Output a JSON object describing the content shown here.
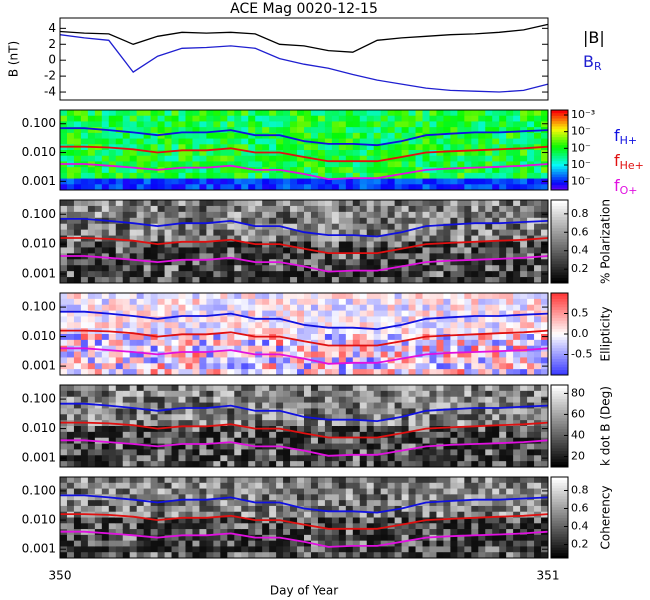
{
  "chart_data": [
    {
      "type": "line",
      "title": "ACE Mag 0020-12-15",
      "ylabel": "B (nT)",
      "xlim": [
        350,
        351
      ],
      "ylim": [
        -5,
        5.3
      ],
      "yticks": [
        -4,
        -2,
        0,
        2,
        4
      ],
      "x": [
        350,
        350.05,
        350.1,
        350.15,
        350.2,
        350.25,
        350.3,
        350.35,
        350.4,
        350.45,
        350.5,
        350.55,
        350.6,
        350.65,
        350.7,
        350.75,
        350.8,
        350.85,
        350.9,
        350.95,
        351
      ],
      "series": [
        {
          "name": "|B|",
          "color": "#000000",
          "values": [
            3.6,
            3.4,
            3.3,
            2.0,
            3.0,
            3.5,
            3.4,
            3.5,
            3.3,
            2.0,
            1.8,
            1.2,
            1.0,
            2.5,
            2.8,
            3.0,
            3.2,
            3.3,
            3.5,
            3.8,
            4.5
          ]
        },
        {
          "name": "B",
          "sub": "R",
          "color": "#1f1fd0",
          "values": [
            3.2,
            2.8,
            2.5,
            -1.5,
            0.5,
            1.5,
            1.6,
            1.8,
            1.5,
            0.2,
            -0.5,
            -1.0,
            -1.8,
            -2.5,
            -3.0,
            -3.5,
            -3.8,
            -3.9,
            -4.0,
            -3.8,
            -3.0
          ]
        }
      ]
    },
    {
      "type": "spectrogram",
      "colormap": "rainbow",
      "legend": true,
      "xlim": [
        350,
        351
      ],
      "ylim": [
        0.0005,
        0.3
      ],
      "log_y": true,
      "yticks": [
        {
          "value": 0.001,
          "label": "0.001"
        },
        {
          "value": 0.01,
          "label": "0.010"
        },
        {
          "value": 0.1,
          "label": "0.100"
        }
      ],
      "clim": [
        -7.5,
        -2.7
      ],
      "cticks": [
        {
          "value": -3,
          "label": "10⁻³"
        },
        {
          "value": -4,
          "label": "10⁻"
        },
        {
          "value": -5,
          "label": "10⁻"
        },
        {
          "value": -6,
          "label": "10⁻"
        },
        {
          "value": -7,
          "label": "10⁻"
        }
      ],
      "x": [
        350,
        350.05,
        350.1,
        350.15,
        350.2,
        350.25,
        350.3,
        350.35,
        350.4,
        350.45,
        350.5,
        350.55,
        350.6,
        350.65,
        350.7,
        350.75,
        350.8,
        350.85,
        350.9,
        350.95,
        351
      ],
      "series": [
        {
          "name": "f",
          "sub": "H+",
          "color": "#1010e0",
          "values": [
            0.07,
            0.07,
            0.06,
            0.05,
            0.04,
            0.05,
            0.05,
            0.06,
            0.04,
            0.04,
            0.025,
            0.02,
            0.02,
            0.018,
            0.025,
            0.04,
            0.045,
            0.05,
            0.05,
            0.055,
            0.06
          ]
        },
        {
          "name": "f",
          "sub": "He+",
          "color": "#e01010",
          "values": [
            0.016,
            0.016,
            0.015,
            0.013,
            0.01,
            0.012,
            0.012,
            0.014,
            0.01,
            0.01,
            0.007,
            0.005,
            0.005,
            0.005,
            0.007,
            0.01,
            0.011,
            0.012,
            0.013,
            0.014,
            0.016
          ]
        },
        {
          "name": "f",
          "sub": "O+",
          "color": "#e010e0",
          "values": [
            0.004,
            0.004,
            0.0035,
            0.003,
            0.0025,
            0.003,
            0.003,
            0.0035,
            0.0025,
            0.0025,
            0.0018,
            0.0012,
            0.0013,
            0.0013,
            0.0018,
            0.0025,
            0.0028,
            0.003,
            0.0032,
            0.0035,
            0.004
          ]
        }
      ]
    },
    {
      "type": "spectrogram",
      "colormap": "gray",
      "colorbar_label": "% Polarization",
      "xlim": [
        350,
        351
      ],
      "ylim": [
        0.0005,
        0.3
      ],
      "log_y": true,
      "yticks": [
        {
          "value": 0.001,
          "label": "0.001"
        },
        {
          "value": 0.01,
          "label": "0.010"
        },
        {
          "value": 0.1,
          "label": "0.100"
        }
      ],
      "clim": [
        0.05,
        0.95
      ],
      "cticks": [
        0.2,
        0.4,
        0.6,
        0.8
      ],
      "x": [
        350,
        350.05,
        350.1,
        350.15,
        350.2,
        350.25,
        350.3,
        350.35,
        350.4,
        350.45,
        350.5,
        350.55,
        350.6,
        350.65,
        350.7,
        350.75,
        350.8,
        350.85,
        350.9,
        350.95,
        351
      ],
      "series": [
        {
          "name": "f",
          "sub": "H+",
          "color": "#1010e0",
          "values": [
            0.07,
            0.07,
            0.06,
            0.05,
            0.04,
            0.05,
            0.05,
            0.06,
            0.04,
            0.04,
            0.025,
            0.02,
            0.02,
            0.018,
            0.025,
            0.04,
            0.045,
            0.05,
            0.05,
            0.055,
            0.06
          ]
        },
        {
          "name": "f",
          "sub": "He+",
          "color": "#e01010",
          "values": [
            0.016,
            0.016,
            0.015,
            0.013,
            0.01,
            0.012,
            0.012,
            0.014,
            0.01,
            0.01,
            0.007,
            0.005,
            0.005,
            0.005,
            0.007,
            0.01,
            0.011,
            0.012,
            0.013,
            0.014,
            0.016
          ]
        },
        {
          "name": "f",
          "sub": "O+",
          "color": "#e010e0",
          "values": [
            0.004,
            0.004,
            0.0035,
            0.003,
            0.0025,
            0.003,
            0.003,
            0.0035,
            0.0025,
            0.0025,
            0.0018,
            0.0012,
            0.0013,
            0.0013,
            0.0018,
            0.0025,
            0.0028,
            0.003,
            0.0032,
            0.0035,
            0.004
          ]
        }
      ]
    },
    {
      "type": "spectrogram",
      "colormap": "bwr",
      "colorbar_label": "Ellipticity",
      "xlim": [
        350,
        351
      ],
      "ylim": [
        0.0005,
        0.3
      ],
      "log_y": true,
      "yticks": [
        {
          "value": 0.001,
          "label": "0.001"
        },
        {
          "value": 0.01,
          "label": "0.010"
        },
        {
          "value": 0.1,
          "label": "0.100"
        }
      ],
      "clim": [
        -1,
        1
      ],
      "cticks": [
        -0.5,
        {
          "value": 0,
          "label": "0.0"
        },
        0.5
      ],
      "x": [
        350,
        350.05,
        350.1,
        350.15,
        350.2,
        350.25,
        350.3,
        350.35,
        350.4,
        350.45,
        350.5,
        350.55,
        350.6,
        350.65,
        350.7,
        350.75,
        350.8,
        350.85,
        350.9,
        350.95,
        351
      ],
      "series": [
        {
          "name": "f",
          "sub": "H+",
          "color": "#1010e0",
          "values": [
            0.07,
            0.07,
            0.06,
            0.05,
            0.04,
            0.05,
            0.05,
            0.06,
            0.04,
            0.04,
            0.025,
            0.02,
            0.02,
            0.018,
            0.025,
            0.04,
            0.045,
            0.05,
            0.05,
            0.055,
            0.06
          ]
        },
        {
          "name": "f",
          "sub": "He+",
          "color": "#e01010",
          "values": [
            0.016,
            0.016,
            0.015,
            0.013,
            0.01,
            0.012,
            0.012,
            0.014,
            0.01,
            0.01,
            0.007,
            0.005,
            0.005,
            0.005,
            0.007,
            0.01,
            0.011,
            0.012,
            0.013,
            0.014,
            0.016
          ]
        },
        {
          "name": "f",
          "sub": "O+",
          "color": "#e010e0",
          "values": [
            0.004,
            0.004,
            0.0035,
            0.003,
            0.0025,
            0.003,
            0.003,
            0.0035,
            0.0025,
            0.0025,
            0.0018,
            0.0012,
            0.0013,
            0.0013,
            0.0018,
            0.0025,
            0.0028,
            0.003,
            0.0032,
            0.0035,
            0.004
          ]
        }
      ]
    },
    {
      "type": "spectrogram",
      "colormap": "gray",
      "colorbar_label": "k dot B (Deg)",
      "xlim": [
        350,
        351
      ],
      "ylim": [
        0.0005,
        0.3
      ],
      "log_y": true,
      "yticks": [
        {
          "value": 0.001,
          "label": "0.001"
        },
        {
          "value": 0.01,
          "label": "0.010"
        },
        {
          "value": 0.1,
          "label": "0.100"
        }
      ],
      "clim": [
        10,
        88
      ],
      "cticks": [
        20,
        40,
        60,
        80
      ],
      "x": [
        350,
        350.05,
        350.1,
        350.15,
        350.2,
        350.25,
        350.3,
        350.35,
        350.4,
        350.45,
        350.5,
        350.55,
        350.6,
        350.65,
        350.7,
        350.75,
        350.8,
        350.85,
        350.9,
        350.95,
        351
      ],
      "series": [
        {
          "name": "f",
          "sub": "H+",
          "color": "#1010e0",
          "values": [
            0.07,
            0.07,
            0.06,
            0.05,
            0.04,
            0.05,
            0.05,
            0.06,
            0.04,
            0.04,
            0.025,
            0.02,
            0.02,
            0.018,
            0.025,
            0.04,
            0.045,
            0.05,
            0.05,
            0.055,
            0.06
          ]
        },
        {
          "name": "f",
          "sub": "He+",
          "color": "#e01010",
          "values": [
            0.016,
            0.016,
            0.015,
            0.013,
            0.01,
            0.012,
            0.012,
            0.014,
            0.01,
            0.01,
            0.007,
            0.005,
            0.005,
            0.005,
            0.007,
            0.01,
            0.011,
            0.012,
            0.013,
            0.014,
            0.016
          ]
        },
        {
          "name": "f",
          "sub": "O+",
          "color": "#e010e0",
          "values": [
            0.004,
            0.004,
            0.0035,
            0.003,
            0.0025,
            0.003,
            0.003,
            0.0035,
            0.0025,
            0.0025,
            0.0018,
            0.0012,
            0.0013,
            0.0013,
            0.0018,
            0.0025,
            0.0028,
            0.003,
            0.0032,
            0.0035,
            0.004
          ]
        }
      ]
    },
    {
      "type": "spectrogram",
      "colormap": "gray",
      "colorbar_label": "Coherency",
      "xlabel": "Day of Year",
      "xlim": [
        350,
        351
      ],
      "xticks": [
        350,
        351
      ],
      "ylim": [
        0.0005,
        0.3
      ],
      "log_y": true,
      "yticks": [
        {
          "value": 0.001,
          "label": "0.001"
        },
        {
          "value": 0.01,
          "label": "0.010"
        },
        {
          "value": 0.1,
          "label": "0.100"
        }
      ],
      "clim": [
        0.05,
        0.95
      ],
      "cticks": [
        0.2,
        0.4,
        0.6,
        0.8
      ],
      "x": [
        350,
        350.05,
        350.1,
        350.15,
        350.2,
        350.25,
        350.3,
        350.35,
        350.4,
        350.45,
        350.5,
        350.55,
        350.6,
        350.65,
        350.7,
        350.75,
        350.8,
        350.85,
        350.9,
        350.95,
        351
      ],
      "series": [
        {
          "name": "f",
          "sub": "H+",
          "color": "#1010e0",
          "values": [
            0.07,
            0.07,
            0.06,
            0.05,
            0.04,
            0.05,
            0.05,
            0.06,
            0.04,
            0.04,
            0.025,
            0.02,
            0.02,
            0.018,
            0.025,
            0.04,
            0.045,
            0.05,
            0.05,
            0.055,
            0.06
          ]
        },
        {
          "name": "f",
          "sub": "He+",
          "color": "#e01010",
          "values": [
            0.016,
            0.016,
            0.015,
            0.013,
            0.01,
            0.012,
            0.012,
            0.014,
            0.01,
            0.01,
            0.007,
            0.005,
            0.005,
            0.005,
            0.007,
            0.01,
            0.011,
            0.012,
            0.013,
            0.014,
            0.016
          ]
        },
        {
          "name": "f",
          "sub": "O+",
          "color": "#e010e0",
          "values": [
            0.004,
            0.004,
            0.0035,
            0.003,
            0.0025,
            0.003,
            0.003,
            0.0035,
            0.0025,
            0.0025,
            0.0018,
            0.0012,
            0.0013,
            0.0013,
            0.0018,
            0.0025,
            0.0028,
            0.003,
            0.0032,
            0.0035,
            0.004
          ]
        }
      ]
    }
  ]
}
